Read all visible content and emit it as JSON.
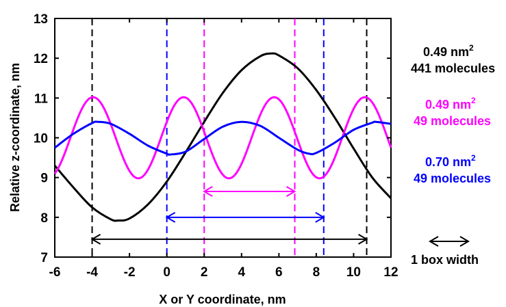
{
  "chart_data": {
    "type": "line",
    "xlabel": "X or Y coordinate, nm",
    "ylabel": "Relative z-coordinate, nm",
    "xlim": [
      -6,
      12
    ],
    "ylim": [
      7,
      13
    ],
    "x_ticks": [
      "-6",
      "-4",
      "-2",
      "0",
      "2",
      "4",
      "6",
      "8",
      "10",
      "12"
    ],
    "y_ticks": [
      "7",
      "8",
      "9",
      "10",
      "11",
      "12",
      "13"
    ],
    "series": [
      {
        "color": "#000000",
        "x": [
          -6,
          -5,
          -4,
          -3,
          -2.6,
          -2,
          -1,
          0,
          1,
          2,
          3,
          4,
          5,
          5.6,
          6,
          7,
          8,
          9,
          10,
          11,
          12
        ],
        "y": [
          9.3,
          8.75,
          8.25,
          7.95,
          7.92,
          7.97,
          8.33,
          8.9,
          9.63,
          10.4,
          11.13,
          11.7,
          12.05,
          12.12,
          12.07,
          11.75,
          11.2,
          10.5,
          9.73,
          9.0,
          8.48
        ]
      },
      {
        "color": "#ff00ff",
        "equation": "z = 10 + 1.02*sin(2*pi*(x - 0.9)/4.85 + pi/2)",
        "x_range": [
          -6,
          12
        ]
      },
      {
        "color": "#0000ff",
        "x": [
          -6,
          -5,
          -4,
          -3.7,
          -3,
          -2,
          -1,
          0,
          0.2,
          1,
          2,
          3,
          4,
          5,
          6,
          7,
          7.6,
          8,
          9,
          10,
          11,
          11.2,
          12
        ],
        "y": [
          9.75,
          10.1,
          10.37,
          10.4,
          10.35,
          10.1,
          9.8,
          9.6,
          9.58,
          9.65,
          9.97,
          10.28,
          10.4,
          10.3,
          10.0,
          9.7,
          9.6,
          9.62,
          9.88,
          10.2,
          10.38,
          10.4,
          10.35
        ]
      }
    ],
    "vertical_dashed_lines": [
      {
        "x": -4,
        "color": "#000000"
      },
      {
        "x": 10.7,
        "color": "#000000"
      },
      {
        "x": 0,
        "color": "#0000ff"
      },
      {
        "x": 8.4,
        "color": "#0000ff"
      },
      {
        "x": 2,
        "color": "#ff00ff"
      },
      {
        "x": 6.85,
        "color": "#ff00ff"
      }
    ],
    "width_arrows": [
      {
        "x1": -4,
        "x2": 10.7,
        "y": 7.45,
        "color": "#000000"
      },
      {
        "x1": 0,
        "x2": 8.4,
        "y": 8.0,
        "color": "#0000ff"
      },
      {
        "x1": 2,
        "x2": 6.85,
        "y": 8.65,
        "color": "#ff00ff"
      }
    ],
    "legend": [
      {
        "area": "0.49 nm",
        "sup": "2",
        "count": "441 molecules",
        "color": "#000000"
      },
      {
        "area": "0.49 nm",
        "sup": "2",
        "count": "49 molecules",
        "color": "#ff00ff"
      },
      {
        "area": "0.70 nm",
        "sup": "2",
        "count": "49 molecules",
        "color": "#0000ff"
      }
    ],
    "key_label": "1 box width"
  }
}
